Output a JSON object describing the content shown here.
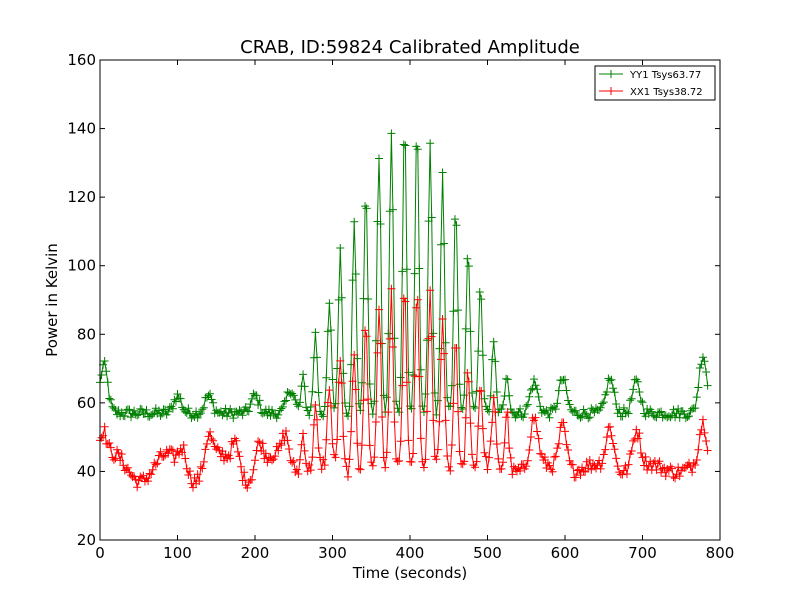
{
  "chart_data": {
    "type": "line",
    "title": "CRAB, ID:59824 Calibrated Amplitude",
    "xlabel": "Time (seconds)",
    "ylabel": "Power in Kelvin",
    "xlim": [
      0,
      800
    ],
    "ylim": [
      20,
      160
    ],
    "xticks": [
      "0",
      "100",
      "200",
      "300",
      "400",
      "500",
      "600",
      "700",
      "800"
    ],
    "yticks": [
      "20",
      "40",
      "60",
      "80",
      "100",
      "120",
      "140",
      "160"
    ],
    "grid": false,
    "legend_position": "top-right",
    "marker": "+",
    "series": [
      {
        "name": "YY1 Tsys63.77",
        "color": "#008000",
        "peaks": [
          {
            "x": 5,
            "y": 71
          },
          {
            "x": 100,
            "y": 62
          },
          {
            "x": 140,
            "y": 62
          },
          {
            "x": 200,
            "y": 62
          },
          {
            "x": 246,
            "y": 64
          },
          {
            "x": 262,
            "y": 67
          },
          {
            "x": 278,
            "y": 80
          },
          {
            "x": 296,
            "y": 89
          },
          {
            "x": 310,
            "y": 104
          },
          {
            "x": 328,
            "y": 112
          },
          {
            "x": 343,
            "y": 123
          },
          {
            "x": 360,
            "y": 132
          },
          {
            "x": 376,
            "y": 138
          },
          {
            "x": 393,
            "y": 142
          },
          {
            "x": 409,
            "y": 141
          },
          {
            "x": 426,
            "y": 136
          },
          {
            "x": 442,
            "y": 126
          },
          {
            "x": 459,
            "y": 117
          },
          {
            "x": 475,
            "y": 105
          },
          {
            "x": 491,
            "y": 94
          },
          {
            "x": 508,
            "y": 77
          },
          {
            "x": 525,
            "y": 69
          },
          {
            "x": 560,
            "y": 66
          },
          {
            "x": 597,
            "y": 67
          },
          {
            "x": 658,
            "y": 67
          },
          {
            "x": 692,
            "y": 66
          },
          {
            "x": 778,
            "y": 74
          }
        ],
        "baseline": 57
      },
      {
        "name": "XX1 Tsys38.72",
        "color": "#ff0000",
        "peaks": [
          {
            "x": 3,
            "y": 51
          },
          {
            "x": 107,
            "y": 48
          },
          {
            "x": 140,
            "y": 50
          },
          {
            "x": 175,
            "y": 49
          },
          {
            "x": 205,
            "y": 49
          },
          {
            "x": 240,
            "y": 50
          },
          {
            "x": 262,
            "y": 52
          },
          {
            "x": 278,
            "y": 58
          },
          {
            "x": 296,
            "y": 64
          },
          {
            "x": 310,
            "y": 73
          },
          {
            "x": 328,
            "y": 76
          },
          {
            "x": 343,
            "y": 84
          },
          {
            "x": 360,
            "y": 87
          },
          {
            "x": 376,
            "y": 92
          },
          {
            "x": 393,
            "y": 95
          },
          {
            "x": 409,
            "y": 94
          },
          {
            "x": 426,
            "y": 91
          },
          {
            "x": 442,
            "y": 84
          },
          {
            "x": 459,
            "y": 80
          },
          {
            "x": 475,
            "y": 71
          },
          {
            "x": 491,
            "y": 65
          },
          {
            "x": 508,
            "y": 60
          },
          {
            "x": 525,
            "y": 58
          },
          {
            "x": 560,
            "y": 55
          },
          {
            "x": 597,
            "y": 54
          },
          {
            "x": 658,
            "y": 53
          },
          {
            "x": 692,
            "y": 52
          },
          {
            "x": 778,
            "y": 53
          }
        ],
        "baseline": 41
      }
    ]
  }
}
